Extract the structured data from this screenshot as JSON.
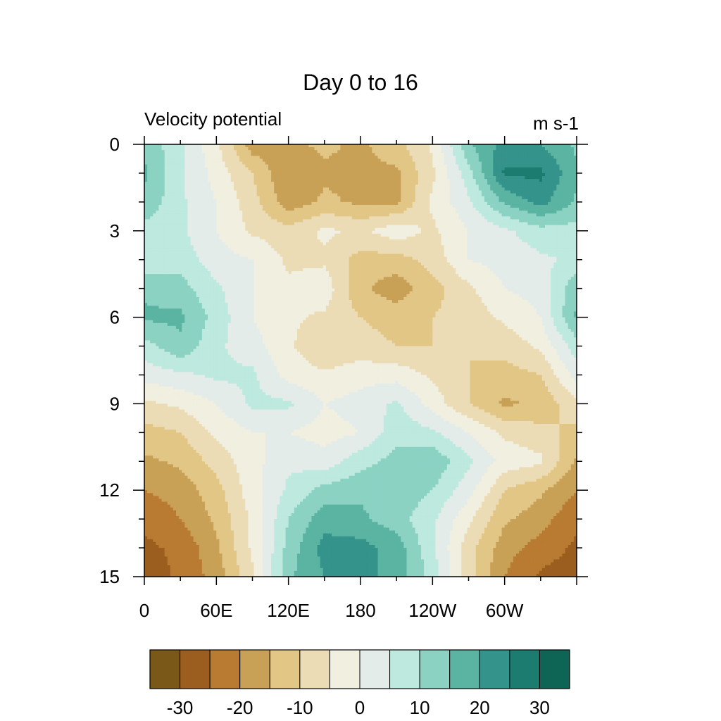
{
  "chart_data": {
    "type": "heatmap",
    "title": "Day 0 to 16",
    "left_string": "Velocity potential",
    "right_string": "m s-1",
    "x_tick_labels": [
      "0",
      "60E",
      "120E",
      "180",
      "120W",
      "60W"
    ],
    "x_tick_values_deg": [
      0,
      60,
      120,
      180,
      240,
      300
    ],
    "y_tick_labels": [
      "0",
      "3",
      "6",
      "9",
      "12",
      "15"
    ],
    "y_tick_values": [
      0,
      3,
      6,
      9,
      12,
      15
    ],
    "xlim_deg": [
      0,
      360
    ],
    "ylim": [
      0,
      15
    ],
    "y_axis_reversed": true,
    "x_grid": [
      0,
      30,
      60,
      90,
      120,
      150,
      180,
      210,
      240,
      270,
      300,
      330,
      360
    ],
    "y_grid": [
      0,
      1,
      2,
      3,
      4,
      5,
      6,
      7,
      8,
      9,
      10,
      11,
      12,
      13,
      14,
      15
    ],
    "values": [
      [
        14,
        6,
        -4,
        -18,
        -16,
        -14,
        -16,
        -12,
        -4,
        14,
        22,
        20,
        14
      ],
      [
        16,
        6,
        -2,
        -10,
        -20,
        -16,
        -16,
        -16,
        -6,
        8,
        26,
        26,
        16
      ],
      [
        14,
        6,
        0,
        -8,
        -18,
        -14,
        -16,
        -16,
        -4,
        4,
        16,
        22,
        14
      ],
      [
        8,
        6,
        0,
        -6,
        -8,
        -4,
        -6,
        -2,
        -6,
        0,
        4,
        8,
        8
      ],
      [
        6,
        8,
        2,
        0,
        -6,
        -6,
        -12,
        -12,
        -8,
        0,
        2,
        4,
        6
      ],
      [
        14,
        12,
        6,
        0,
        -4,
        -2,
        -14,
        -18,
        -12,
        -6,
        0,
        2,
        14
      ],
      [
        16,
        16,
        8,
        0,
        -4,
        -6,
        -10,
        -12,
        -10,
        -8,
        -4,
        0,
        16
      ],
      [
        8,
        14,
        6,
        2,
        -4,
        -10,
        -8,
        -10,
        -10,
        -10,
        -8,
        -4,
        8
      ],
      [
        2,
        4,
        6,
        6,
        -2,
        -4,
        -2,
        -2,
        -6,
        -10,
        -12,
        -10,
        2
      ],
      [
        -6,
        -4,
        0,
        6,
        6,
        0,
        2,
        6,
        -2,
        -10,
        -16,
        -14,
        -6
      ],
      [
        -12,
        -10,
        -4,
        0,
        0,
        -2,
        0,
        8,
        6,
        0,
        -6,
        -8,
        -12
      ],
      [
        -16,
        -14,
        -8,
        -2,
        4,
        2,
        8,
        12,
        14,
        6,
        -2,
        -4,
        -16
      ],
      [
        -20,
        -18,
        -12,
        -2,
        6,
        12,
        14,
        14,
        10,
        2,
        -10,
        -14,
        -20
      ],
      [
        -24,
        -20,
        -14,
        -4,
        10,
        18,
        16,
        12,
        6,
        -4,
        -14,
        -18,
        -24
      ],
      [
        -26,
        -24,
        -16,
        -4,
        12,
        22,
        22,
        18,
        6,
        -8,
        -18,
        -22,
        -26
      ],
      [
        -28,
        -24,
        -18,
        -6,
        14,
        20,
        22,
        18,
        8,
        -8,
        -20,
        -26,
        -28
      ]
    ],
    "levels": [
      -30,
      -25,
      -20,
      -15,
      -10,
      -5,
      0,
      5,
      10,
      15,
      20,
      25,
      30
    ],
    "colorbar_labels": [
      "-30",
      "-20",
      "-10",
      "0",
      "10",
      "20",
      "30"
    ],
    "colorbar_label_values": [
      -30,
      -20,
      -10,
      0,
      10,
      20,
      30
    ],
    "colors": [
      "#7a5818",
      "#9c5e1e",
      "#b97b32",
      "#c8a156",
      "#e2c686",
      "#ecdcb6",
      "#f1efe0",
      "#e4ecea",
      "#bde9df",
      "#8bd2c3",
      "#5bb4a2",
      "#34938a",
      "#1c7c6f",
      "#0e6556"
    ],
    "grid": false,
    "legend": "colorbar-bottom"
  }
}
